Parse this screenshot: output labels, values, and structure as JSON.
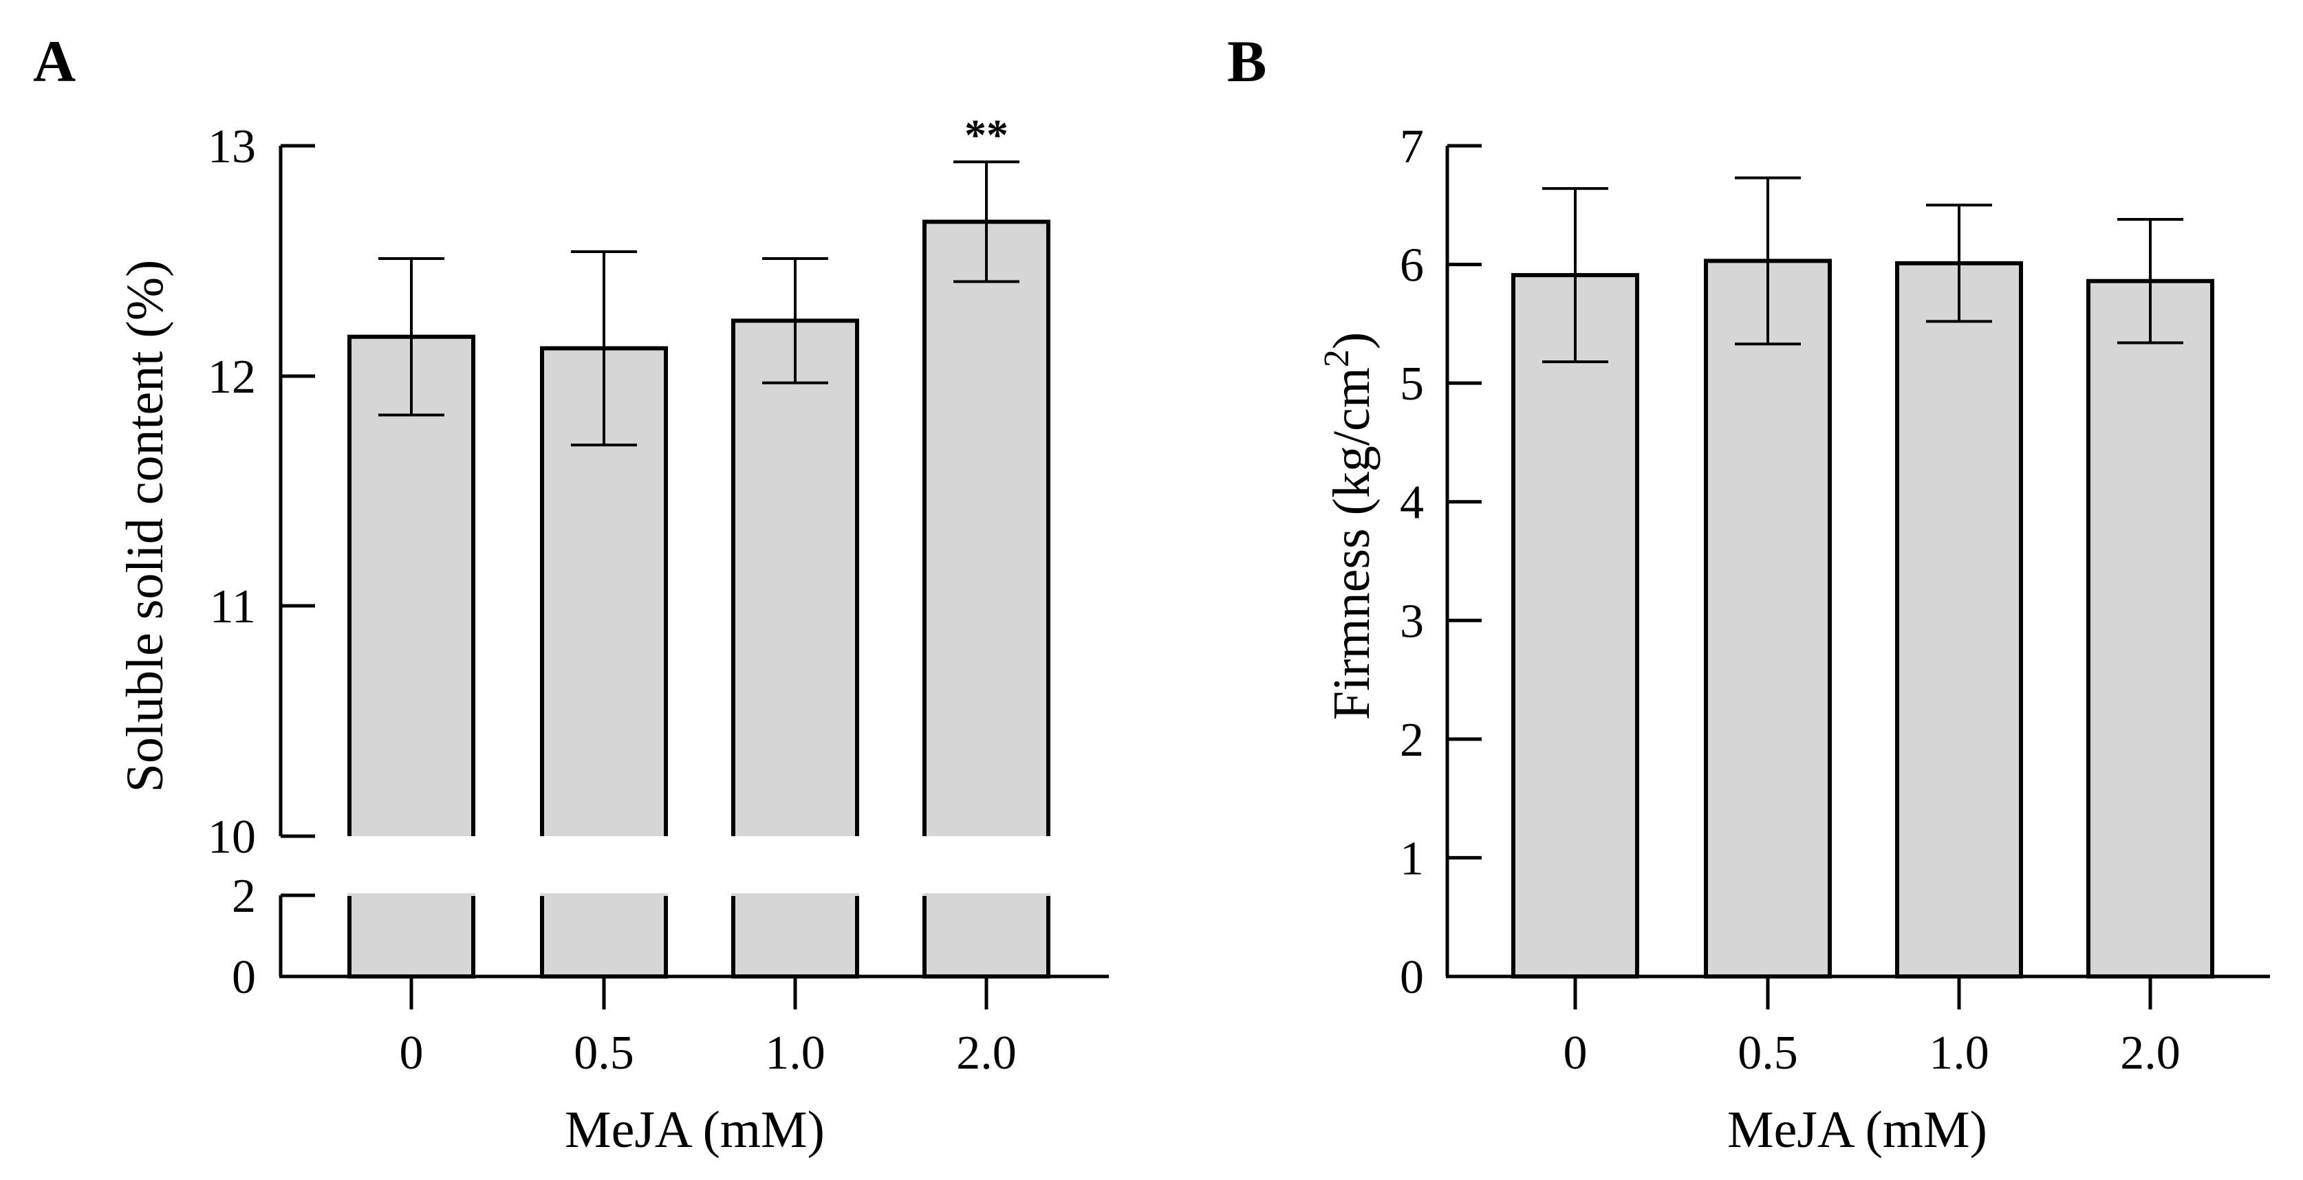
{
  "chart_data": [
    {
      "panel_label": "A",
      "type": "bar",
      "categories": [
        "0",
        "0.5",
        "1.0",
        "2.0"
      ],
      "values": [
        12.17,
        12.12,
        12.24,
        12.67
      ],
      "errors": [
        0.34,
        0.42,
        0.27,
        0.26
      ],
      "annotations": [
        "",
        "",
        "",
        "**"
      ],
      "xlabel": "MeJA (mM)",
      "ylabel": "Soluble solid content (%)",
      "ylim": [
        0,
        13
      ],
      "axis_break": {
        "lower": [
          0,
          2
        ],
        "upper": [
          10,
          13
        ]
      },
      "yticks_lower": [
        "0",
        "2"
      ],
      "yticks_upper": [
        "10",
        "11",
        "12",
        "13"
      ],
      "grid": false,
      "bar_color": "#d6d6d6"
    },
    {
      "panel_label": "B",
      "type": "bar",
      "categories": [
        "0",
        "0.5",
        "1.0",
        "2.0"
      ],
      "values": [
        5.91,
        6.03,
        6.01,
        5.86
      ],
      "errors": [
        0.73,
        0.7,
        0.49,
        0.52
      ],
      "annotations": [
        "",
        "",
        "",
        ""
      ],
      "xlabel": "MeJA (mM)",
      "ylabel_main": "Firmness (kg/cm",
      "ylabel_sup": "2",
      "ylabel_close": ")",
      "ylim": [
        0,
        7
      ],
      "yticks": [
        "0",
        "1",
        "2",
        "3",
        "4",
        "5",
        "6",
        "7"
      ],
      "grid": false,
      "bar_color": "#d6d6d6"
    }
  ]
}
